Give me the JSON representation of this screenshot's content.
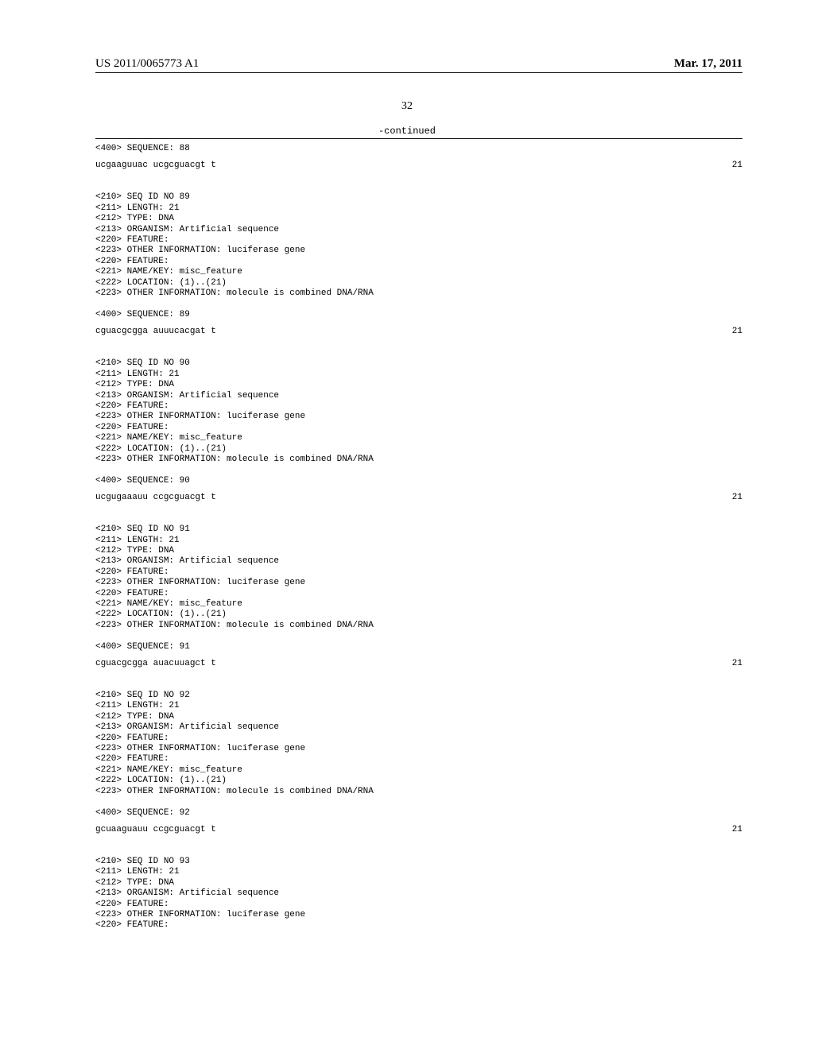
{
  "header": {
    "pub_number": "US 2011/0065773 A1",
    "pub_date": "Mar. 17, 2011"
  },
  "page_number": "32",
  "continued_label": "-continued",
  "entries": [
    {
      "pre_lines": [
        "<400> SEQUENCE: 88"
      ],
      "sequence": "ucgaaguuac ucgcguacgt t",
      "seq_len": "21"
    },
    {
      "pre_lines": [
        "<210> SEQ ID NO 89",
        "<211> LENGTH: 21",
        "<212> TYPE: DNA",
        "<213> ORGANISM: Artificial sequence",
        "<220> FEATURE:",
        "<223> OTHER INFORMATION: luciferase gene",
        "<220> FEATURE:",
        "<221> NAME/KEY: misc_feature",
        "<222> LOCATION: (1)..(21)",
        "<223> OTHER INFORMATION: molecule is combined DNA/RNA",
        "",
        "<400> SEQUENCE: 89"
      ],
      "sequence": "cguacgcgga auuucacgat t",
      "seq_len": "21"
    },
    {
      "pre_lines": [
        "<210> SEQ ID NO 90",
        "<211> LENGTH: 21",
        "<212> TYPE: DNA",
        "<213> ORGANISM: Artificial sequence",
        "<220> FEATURE:",
        "<223> OTHER INFORMATION: luciferase gene",
        "<220> FEATURE:",
        "<221> NAME/KEY: misc_feature",
        "<222> LOCATION: (1)..(21)",
        "<223> OTHER INFORMATION: molecule is combined DNA/RNA",
        "",
        "<400> SEQUENCE: 90"
      ],
      "sequence": "ucgugaaauu ccgcguacgt t",
      "seq_len": "21"
    },
    {
      "pre_lines": [
        "<210> SEQ ID NO 91",
        "<211> LENGTH: 21",
        "<212> TYPE: DNA",
        "<213> ORGANISM: Artificial sequence",
        "<220> FEATURE:",
        "<223> OTHER INFORMATION: luciferase gene",
        "<220> FEATURE:",
        "<221> NAME/KEY: misc_feature",
        "<222> LOCATION: (1)..(21)",
        "<223> OTHER INFORMATION: molecule is combined DNA/RNA",
        "",
        "<400> SEQUENCE: 91"
      ],
      "sequence": "cguacgcgga auacuuagct t",
      "seq_len": "21"
    },
    {
      "pre_lines": [
        "<210> SEQ ID NO 92",
        "<211> LENGTH: 21",
        "<212> TYPE: DNA",
        "<213> ORGANISM: Artificial sequence",
        "<220> FEATURE:",
        "<223> OTHER INFORMATION: luciferase gene",
        "<220> FEATURE:",
        "<221> NAME/KEY: misc_feature",
        "<222> LOCATION: (1)..(21)",
        "<223> OTHER INFORMATION: molecule is combined DNA/RNA",
        "",
        "<400> SEQUENCE: 92"
      ],
      "sequence": "gcuaaguauu ccgcguacgt t",
      "seq_len": "21"
    },
    {
      "pre_lines": [
        "<210> SEQ ID NO 93",
        "<211> LENGTH: 21",
        "<212> TYPE: DNA",
        "<213> ORGANISM: Artificial sequence",
        "<220> FEATURE:",
        "<223> OTHER INFORMATION: luciferase gene",
        "<220> FEATURE:"
      ],
      "sequence": null,
      "seq_len": null
    }
  ]
}
